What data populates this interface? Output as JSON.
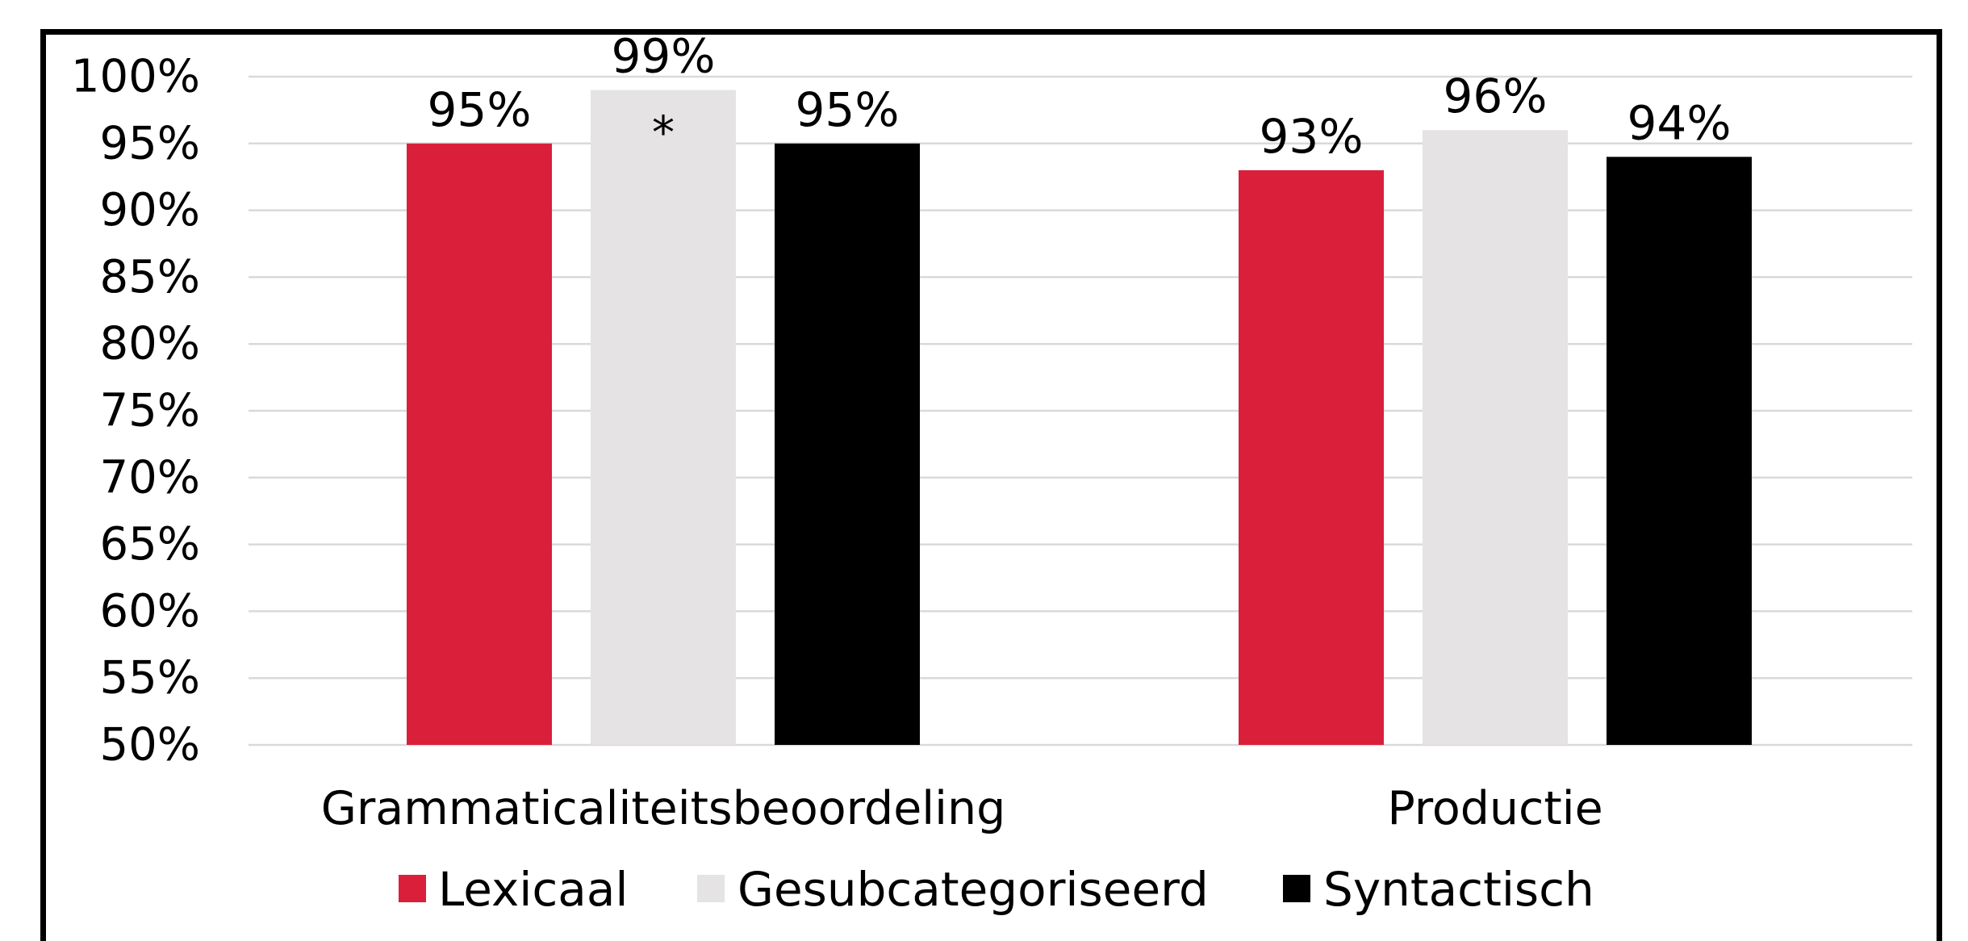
{
  "chart_data": {
    "type": "bar",
    "categories": [
      "Grammaticaliteitsbeoordeling",
      "Productie"
    ],
    "series": [
      {
        "name": "Lexicaal",
        "color": "#DA1F3A",
        "values": [
          95,
          93
        ],
        "labels": [
          "95%",
          "93%"
        ]
      },
      {
        "name": "Gesubcategoriseerd",
        "color": "#E5E3E4",
        "values": [
          99,
          96
        ],
        "labels": [
          "99%",
          "96%"
        ]
      },
      {
        "name": "Syntactisch",
        "color": "#000000",
        "values": [
          95,
          94
        ],
        "labels": [
          "95%",
          "94%"
        ]
      }
    ],
    "ylim": [
      50,
      100
    ],
    "y_ticks": [
      "50%",
      "55%",
      "60%",
      "65%",
      "70%",
      "75%",
      "80%",
      "85%",
      "90%",
      "95%",
      "100%"
    ],
    "y_tick_values": [
      50,
      55,
      60,
      65,
      70,
      75,
      80,
      85,
      90,
      95,
      100
    ],
    "annotations": [
      {
        "category": 0,
        "series": 1,
        "text": "*"
      }
    ],
    "grid": true,
    "legend_position": "bottom",
    "gridline_color": "#D9D9D9",
    "title": "",
    "xlabel": "",
    "ylabel": ""
  }
}
